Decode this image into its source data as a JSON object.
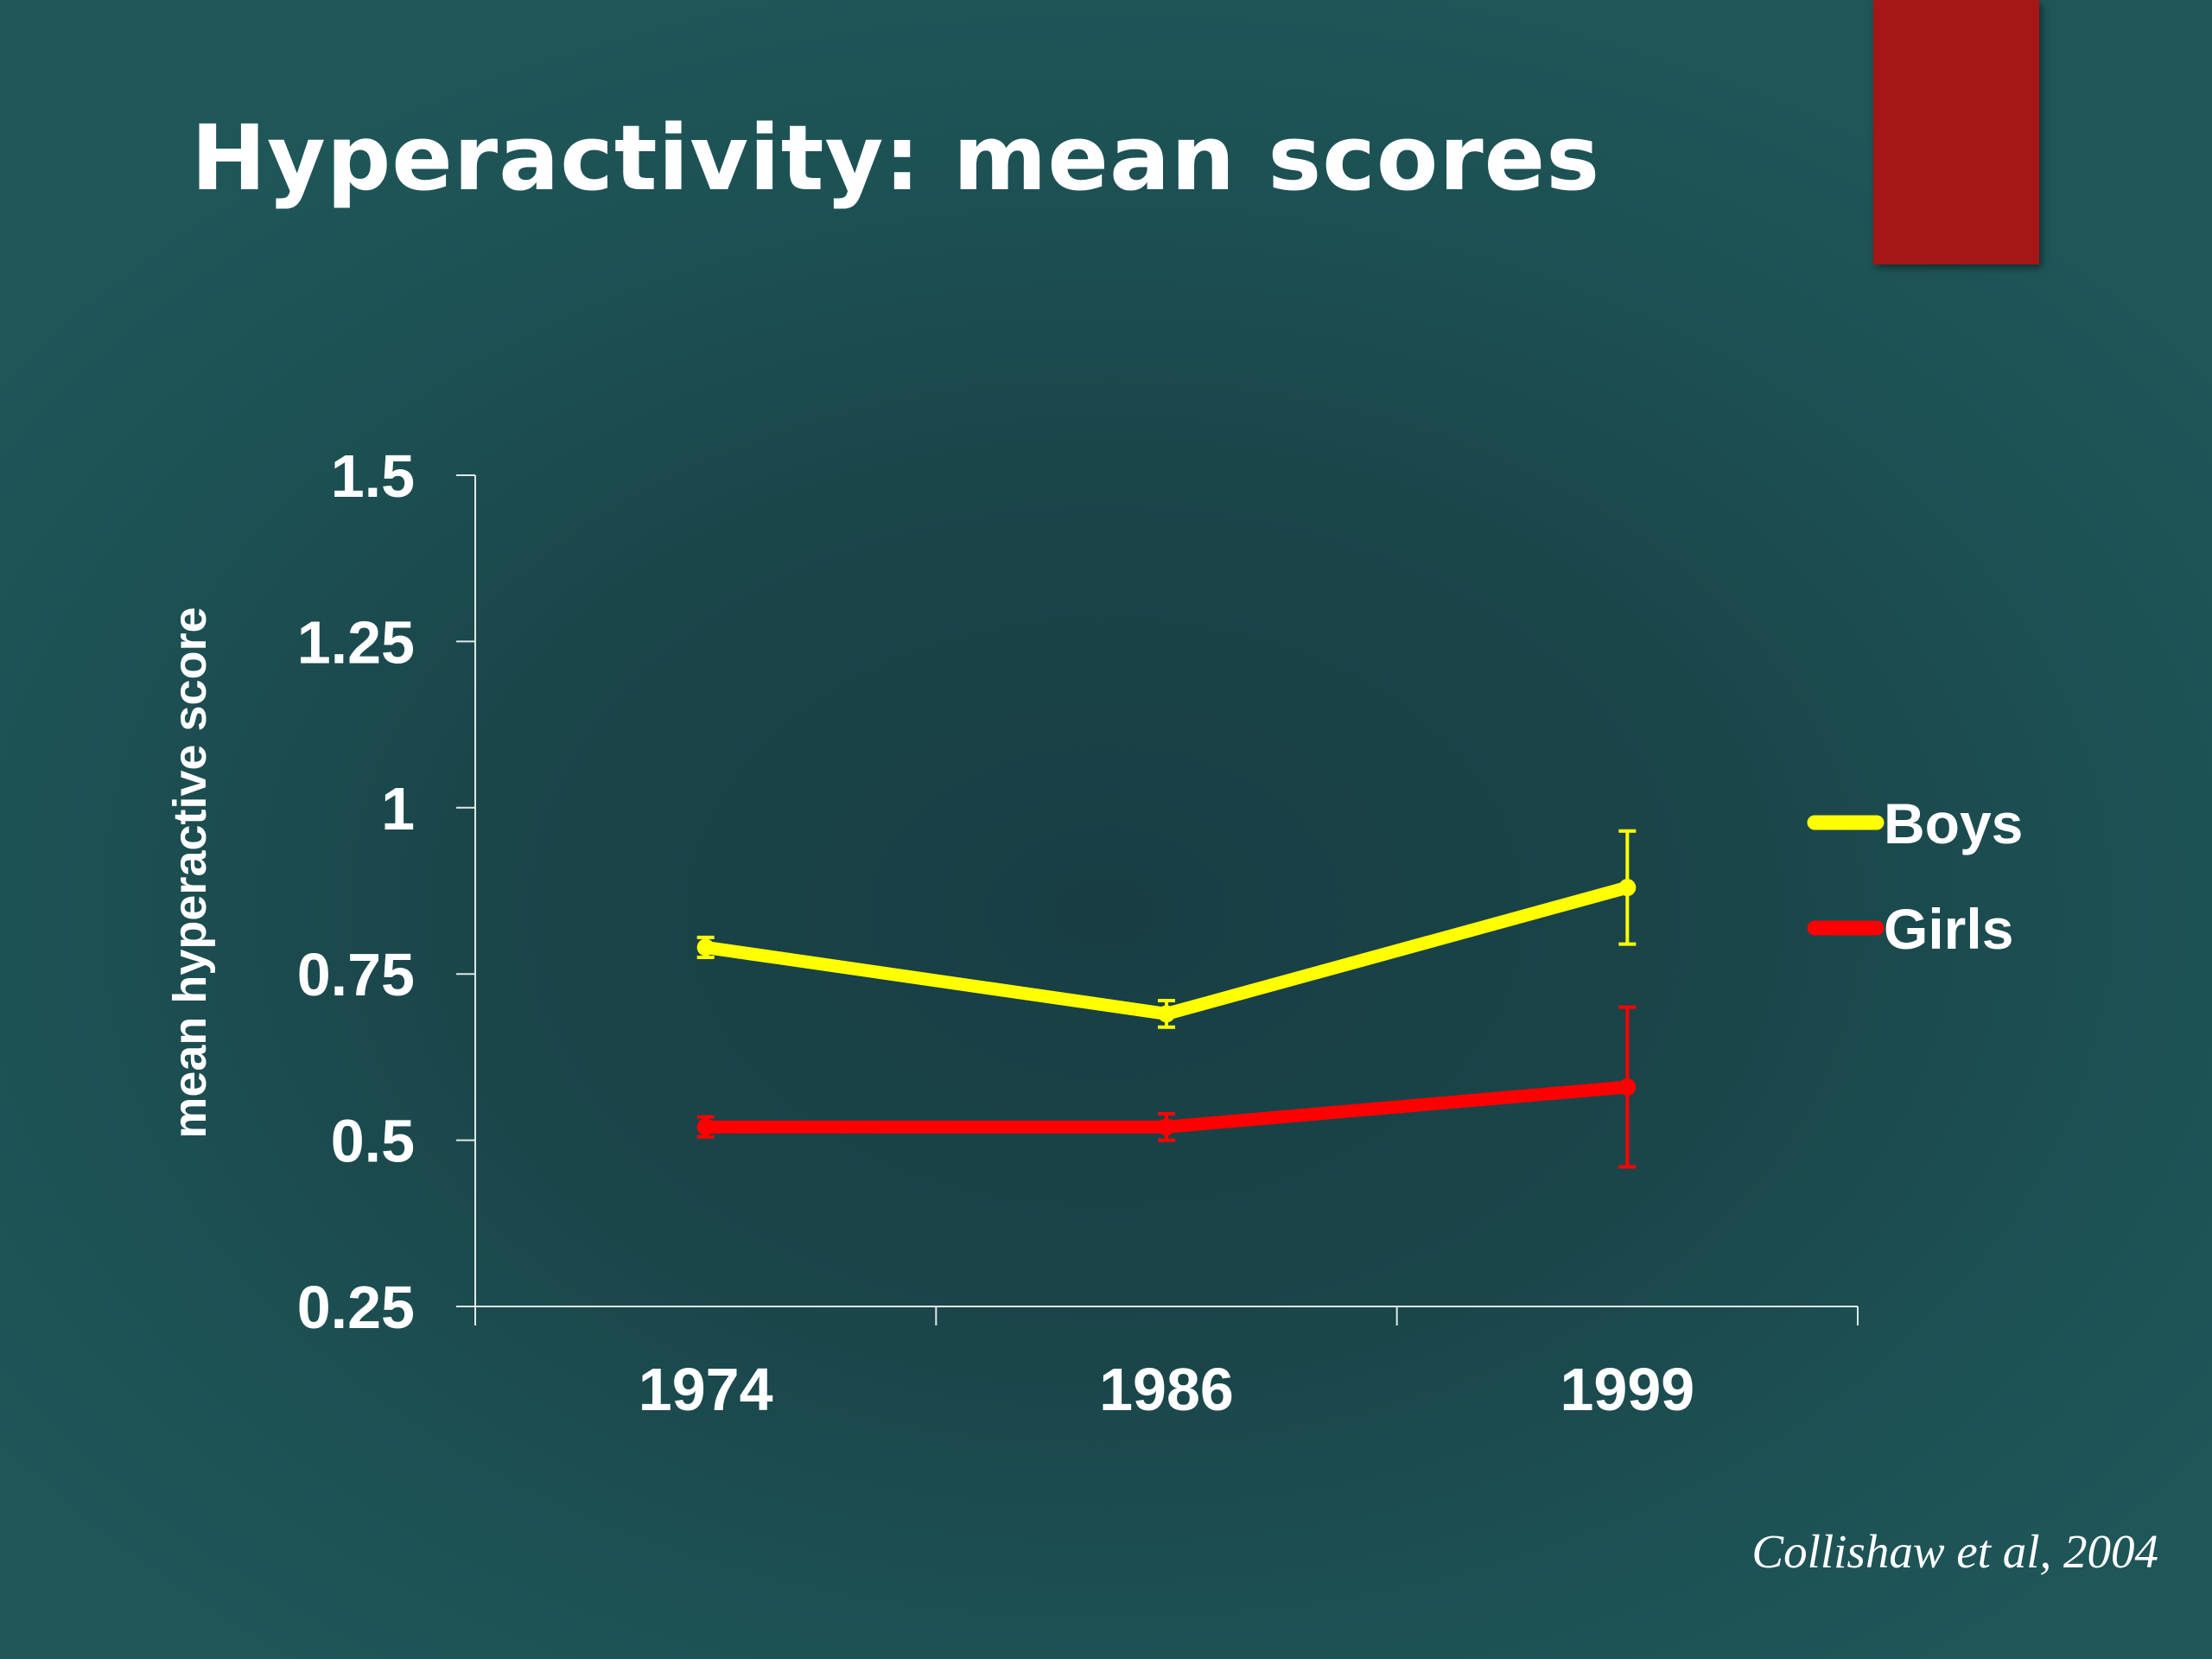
{
  "slide": {
    "title": "Hyperactivity: mean scores",
    "citation": "Collishaw et al, 2004",
    "accent_color": "#a51616"
  },
  "chart_data": {
    "type": "line",
    "title": "",
    "xlabel": "",
    "ylabel": "mean hyperactive score",
    "categories": [
      "1974",
      "1986",
      "1999"
    ],
    "ylim": [
      0.25,
      1.5
    ],
    "yticks": [
      "1.5",
      "1.25",
      "1",
      "0.75",
      "0.5",
      "0.25"
    ],
    "grid": false,
    "legend_position": "right",
    "error_bars": true,
    "series": [
      {
        "name": "Boys",
        "color": "#ffff00",
        "values": [
          0.79,
          0.69,
          0.88
        ],
        "error_low": [
          0.775,
          0.67,
          0.795
        ],
        "error_high": [
          0.805,
          0.71,
          0.965
        ]
      },
      {
        "name": "Girls",
        "color": "#ff0000",
        "values": [
          0.52,
          0.52,
          0.58
        ],
        "error_low": [
          0.505,
          0.5,
          0.46
        ],
        "error_high": [
          0.535,
          0.54,
          0.7
        ]
      }
    ]
  }
}
